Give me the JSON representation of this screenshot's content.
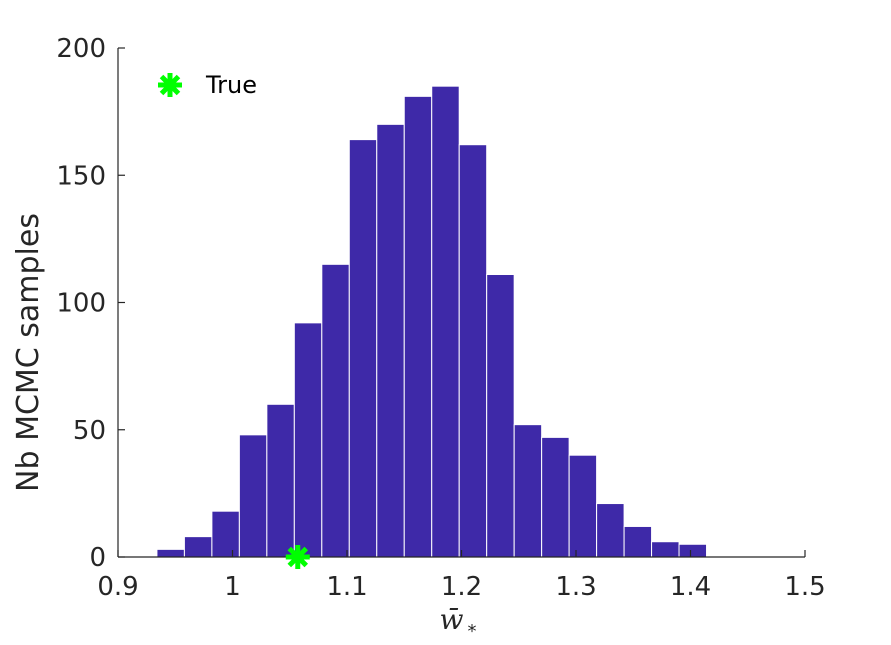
{
  "chart_data": {
    "type": "histogram",
    "xlabel": "w̄",
    "xlabel_subscript": "*",
    "ylabel": "Nb MCMC samples",
    "xlim": [
      0.9,
      1.5
    ],
    "ylim": [
      0,
      200
    ],
    "xticks": [
      "0.9",
      "1",
      "1.1",
      "1.2",
      "1.3",
      "1.4",
      "1.5"
    ],
    "yticks": [
      "0",
      "50",
      "100",
      "150",
      "200"
    ],
    "bin_width": 0.024,
    "bins": [
      {
        "x0": 0.934,
        "count": 3
      },
      {
        "x0": 0.958,
        "count": 8
      },
      {
        "x0": 0.982,
        "count": 18
      },
      {
        "x0": 1.006,
        "count": 48
      },
      {
        "x0": 1.03,
        "count": 60
      },
      {
        "x0": 1.054,
        "count": 92
      },
      {
        "x0": 1.078,
        "count": 115
      },
      {
        "x0": 1.102,
        "count": 164
      },
      {
        "x0": 1.126,
        "count": 170
      },
      {
        "x0": 1.15,
        "count": 181
      },
      {
        "x0": 1.174,
        "count": 185
      },
      {
        "x0": 1.198,
        "count": 162
      },
      {
        "x0": 1.222,
        "count": 111
      },
      {
        "x0": 1.246,
        "count": 52
      },
      {
        "x0": 1.27,
        "count": 47
      },
      {
        "x0": 1.294,
        "count": 40
      },
      {
        "x0": 1.318,
        "count": 21
      },
      {
        "x0": 1.342,
        "count": 12
      },
      {
        "x0": 1.366,
        "count": 6
      },
      {
        "x0": 1.39,
        "count": 5
      },
      {
        "x0": 1.414,
        "count": 0
      },
      {
        "x0": 1.438,
        "count": 0
      },
      {
        "x0": 1.462,
        "count": 0
      }
    ],
    "true_marker": {
      "label": "True",
      "x": 1.057,
      "y": 0,
      "color": "#00ff00",
      "symbol": "asterisk"
    },
    "legend": {
      "entries": [
        "True"
      ],
      "position": "top-left"
    },
    "bar_color": "#3e29a8",
    "bar_edge_color": "#ffffff"
  }
}
